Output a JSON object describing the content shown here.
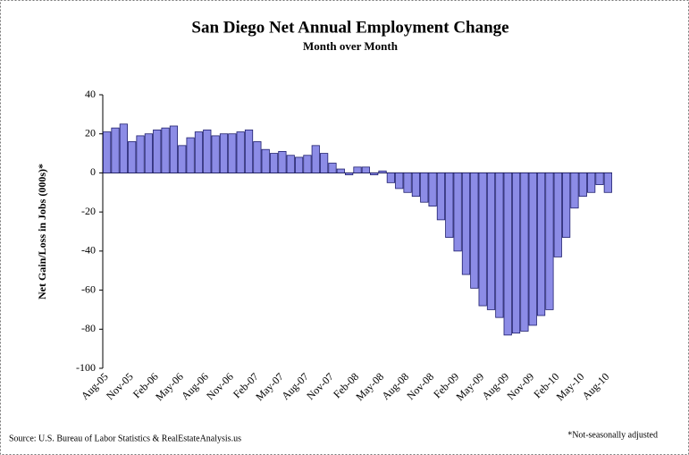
{
  "chart_data": {
    "type": "bar",
    "title": "San Diego Net Annual Employment Change",
    "subtitle": "Month over Month",
    "y_label": "Net Gain/Loss in Jobs (000s)*",
    "source": "Source: U.S. Bureau of Labor Statistics & RealEstateAnalysis.us",
    "note": "*Not-seasonally adjusted",
    "categories": [
      "Aug-05",
      null,
      null,
      "Nov-05",
      null,
      null,
      "Feb-06",
      null,
      null,
      "May-06",
      null,
      null,
      "Aug-06",
      null,
      null,
      "Nov-06",
      null,
      null,
      "Feb-07",
      null,
      null,
      "May-07",
      null,
      null,
      "Aug-07",
      null,
      null,
      "Nov-07",
      null,
      null,
      "Feb-08",
      null,
      null,
      "May-08",
      null,
      null,
      "Aug-08",
      null,
      null,
      "Nov-08",
      null,
      null,
      "Feb-09",
      null,
      null,
      "May-09",
      null,
      null,
      "Aug-09",
      null,
      null,
      "Nov-09",
      null,
      null,
      "Feb-10",
      null,
      null,
      "May-10",
      null,
      null,
      "Aug-10"
    ],
    "values": [
      21,
      23,
      25,
      16,
      19,
      20,
      22,
      23,
      24,
      14,
      18,
      21,
      22,
      19,
      20,
      20,
      21,
      22,
      16,
      12,
      10,
      11,
      9,
      8,
      9,
      14,
      10,
      5,
      2,
      -1,
      3,
      3,
      -1,
      1,
      -5,
      -8,
      -10,
      -12,
      -15,
      -17,
      -24,
      -33,
      -40,
      -52,
      -59,
      -68,
      -70,
      -74,
      -83,
      -82,
      -81,
      -78,
      -73,
      -70,
      -43,
      -33,
      -18,
      -12,
      -10,
      -6,
      -10
    ],
    "color": "#8c8ce6",
    "ylim": [
      -100,
      40
    ],
    "yticks": [
      -100,
      -80,
      -60,
      -40,
      -20,
      0,
      20,
      40
    ],
    "grid": false
  }
}
